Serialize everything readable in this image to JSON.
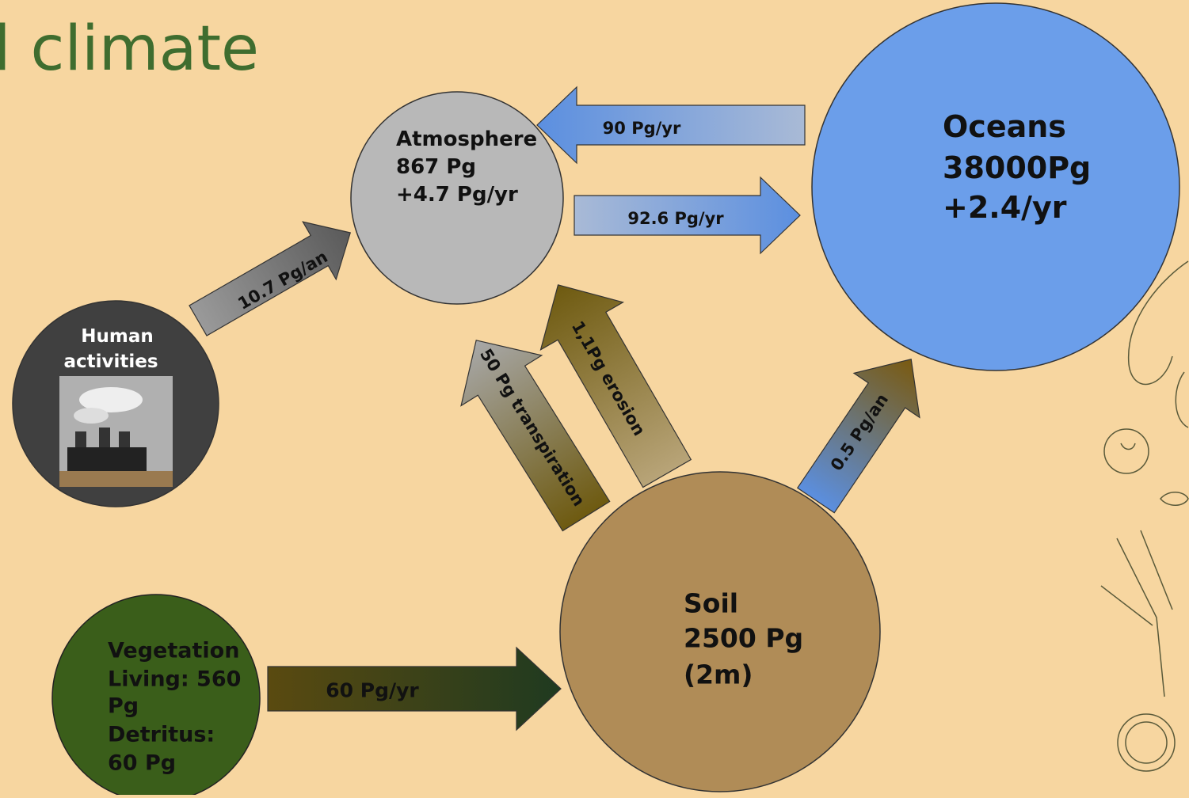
{
  "title": "l climate",
  "atmosphere": {
    "lines": [
      "Atmosphere",
      "867 Pg",
      "+4.7 Pg/yr"
    ]
  },
  "oceans": {
    "lines": [
      "Oceans",
      "38000Pg",
      "+2.4/yr"
    ]
  },
  "soil": {
    "lines": [
      "Soil",
      "2500 Pg",
      "(2m)"
    ]
  },
  "human": {
    "lines": [
      "Human",
      "activities"
    ]
  },
  "vegetation": {
    "lines": [
      "Vegetation",
      "Living: 560",
      "Pg",
      "Detritus:",
      "60 Pg"
    ]
  },
  "flows": [
    "90 Pg/yr",
    "92.6 Pg/yr",
    "10.7 Pg/an",
    "50 Pg transpiration",
    "1,1Pg erosion",
    "0.5 Pg/an",
    "60 Pg/yr"
  ]
}
